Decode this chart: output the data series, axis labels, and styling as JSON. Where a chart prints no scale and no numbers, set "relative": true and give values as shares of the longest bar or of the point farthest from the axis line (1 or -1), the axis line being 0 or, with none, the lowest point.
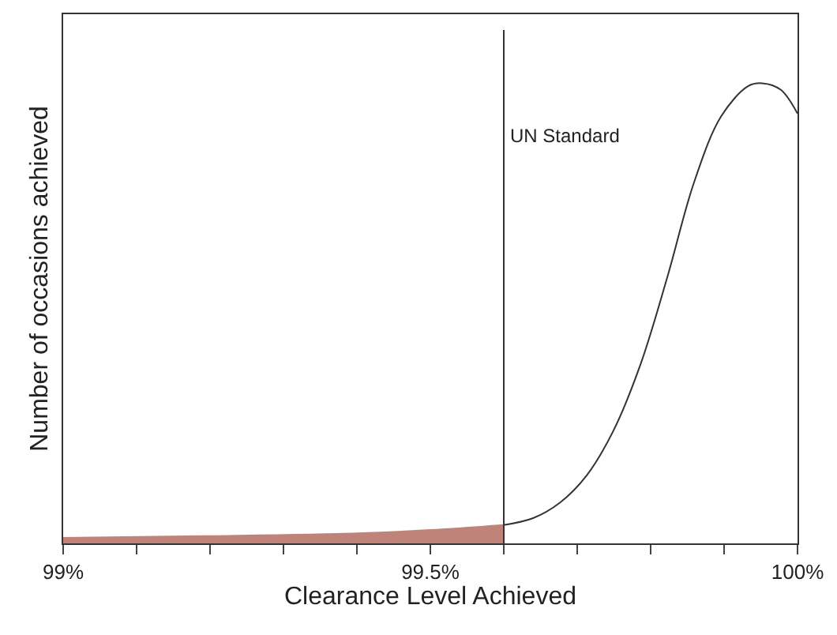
{
  "chart_data": {
    "type": "line",
    "relative": true,
    "xlabel": "Clearance Level Achieved",
    "ylabel": "Number of occasions achieved",
    "xlim": [
      99,
      100
    ],
    "xticks": [
      {
        "value": 99,
        "label": "99%"
      },
      {
        "value": 99.1,
        "label": null
      },
      {
        "value": 99.2,
        "label": null
      },
      {
        "value": 99.3,
        "label": null
      },
      {
        "value": 99.4,
        "label": null
      },
      {
        "value": 99.5,
        "label": "99.5%"
      },
      {
        "value": 99.6,
        "label": null
      },
      {
        "value": 99.7,
        "label": null
      },
      {
        "value": 99.8,
        "label": null
      },
      {
        "value": 99.9,
        "label": null
      },
      {
        "value": 100,
        "label": "100%"
      }
    ],
    "series": [
      {
        "type": "area",
        "color": "#bf8379",
        "x": [
          99.0,
          99.2,
          99.4,
          99.5,
          99.6
        ],
        "values": [
          0.012,
          0.016,
          0.022,
          0.029,
          0.04
        ]
      },
      {
        "color": "#333333",
        "x": [
          99.6,
          99.64,
          99.676,
          99.713,
          99.749,
          99.786,
          99.823,
          99.859,
          99.896,
          99.933,
          99.952,
          99.977,
          100.0
        ],
        "values": [
          0.04,
          0.055,
          0.088,
          0.148,
          0.244,
          0.388,
          0.58,
          0.784,
          0.928,
          0.994,
          1,
          0.986,
          0.934
        ]
      }
    ],
    "ref_lines": [
      {
        "axis": "x",
        "value": 99.6,
        "label": "UN Standard",
        "color": "#333333"
      }
    ]
  }
}
